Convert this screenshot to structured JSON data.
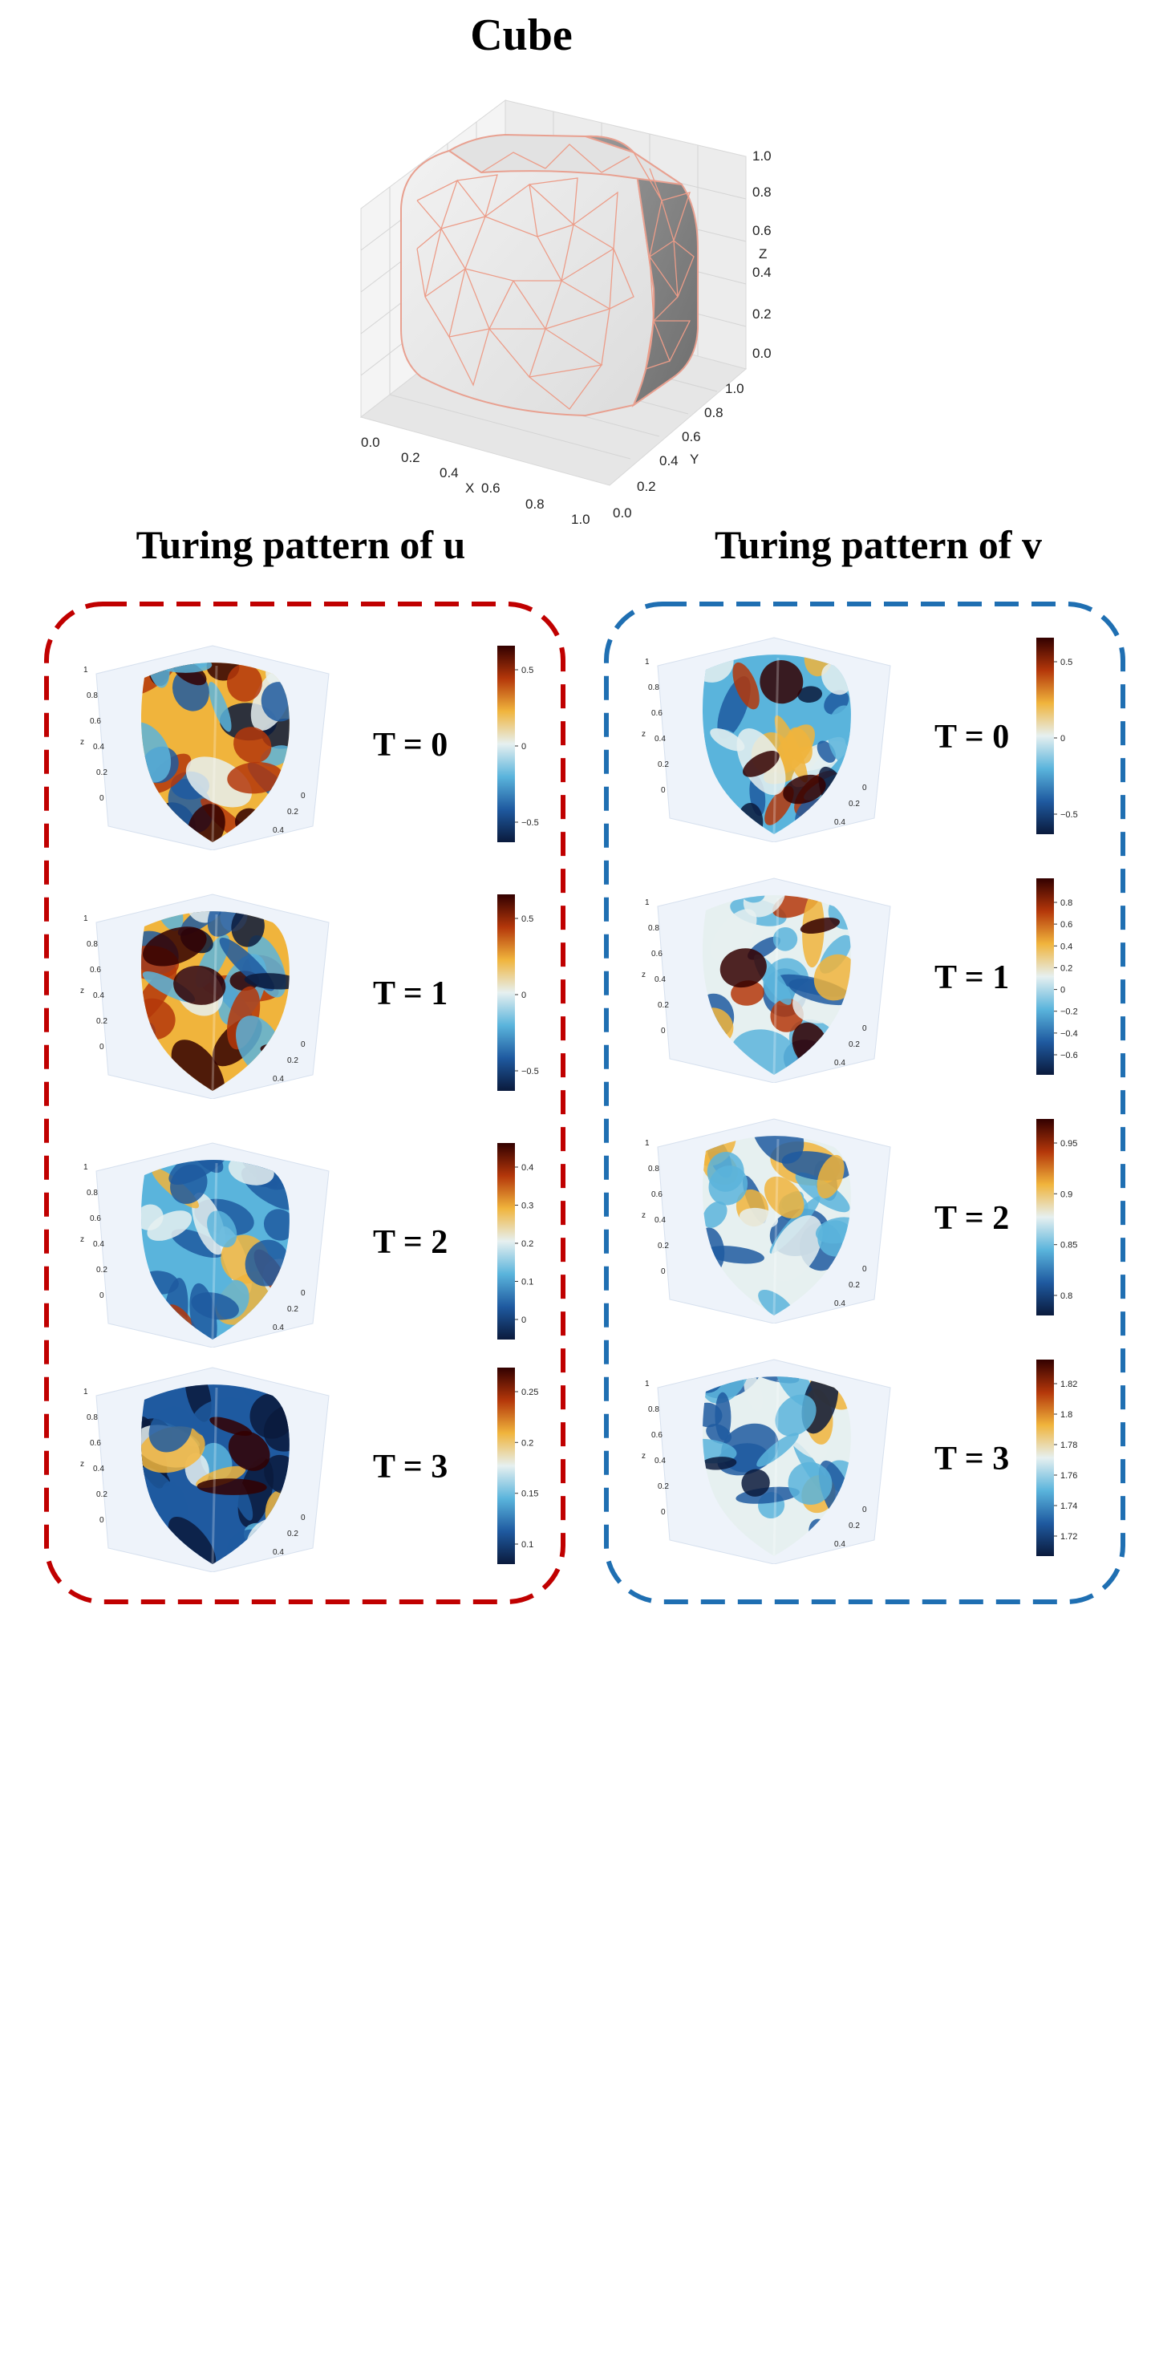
{
  "title": "Cube",
  "cube_axes": {
    "x_ticks": [
      "0.0",
      "0.2",
      "0.4",
      "0.6",
      "0.8",
      "1.0"
    ],
    "y_ticks": [
      "0.0",
      "0.2",
      "0.4",
      "0.6",
      "0.8",
      "1.0"
    ],
    "z_ticks": [
      "0.0",
      "0.2",
      "0.4",
      "0.6",
      "0.8",
      "1.0"
    ],
    "x_label": "X",
    "y_label": "Y",
    "z_label": "Z"
  },
  "panels": {
    "u": {
      "heading": "Turing pattern of u",
      "frame_color": "#c00000",
      "rows": [
        {
          "label": "T = 0",
          "ticks": [
            "0.5",
            "0",
            "−0.5"
          ]
        },
        {
          "label": "T = 1",
          "ticks": [
            "0.5",
            "0",
            "−0.5"
          ]
        },
        {
          "label": "T = 2",
          "ticks": [
            "0.4",
            "0.3",
            "0.2",
            "0.1",
            "0"
          ]
        },
        {
          "label": "T = 3",
          "ticks": [
            "0.25",
            "0.2",
            "0.15",
            "0.1"
          ]
        }
      ]
    },
    "v": {
      "heading": "Turing pattern of v",
      "frame_color": "#1f6fb2",
      "rows": [
        {
          "label": "T = 0",
          "ticks": [
            "0.5",
            "0",
            "−0.5"
          ]
        },
        {
          "label": "T = 1",
          "ticks": [
            "0.8",
            "0.6",
            "0.4",
            "0.2",
            "0",
            "−0.2",
            "−0.4",
            "−0.6"
          ]
        },
        {
          "label": "T = 2",
          "ticks": [
            "0.95",
            "0.9",
            "0.85",
            "0.8"
          ]
        },
        {
          "label": "T = 3",
          "ticks": [
            "1.82",
            "1.8",
            "1.78",
            "1.76",
            "1.74",
            "1.72"
          ]
        }
      ]
    }
  },
  "surface_axis_ticks": [
    "1",
    "0.8",
    "0.6",
    "0.4",
    "0.2",
    "0"
  ],
  "surface_axis_label": "z",
  "colormap": [
    "#0a1a3c",
    "#1f5aa0",
    "#5ab4dc",
    "#e6f0f0",
    "#f0b43c",
    "#b4370a",
    "#320000"
  ]
}
